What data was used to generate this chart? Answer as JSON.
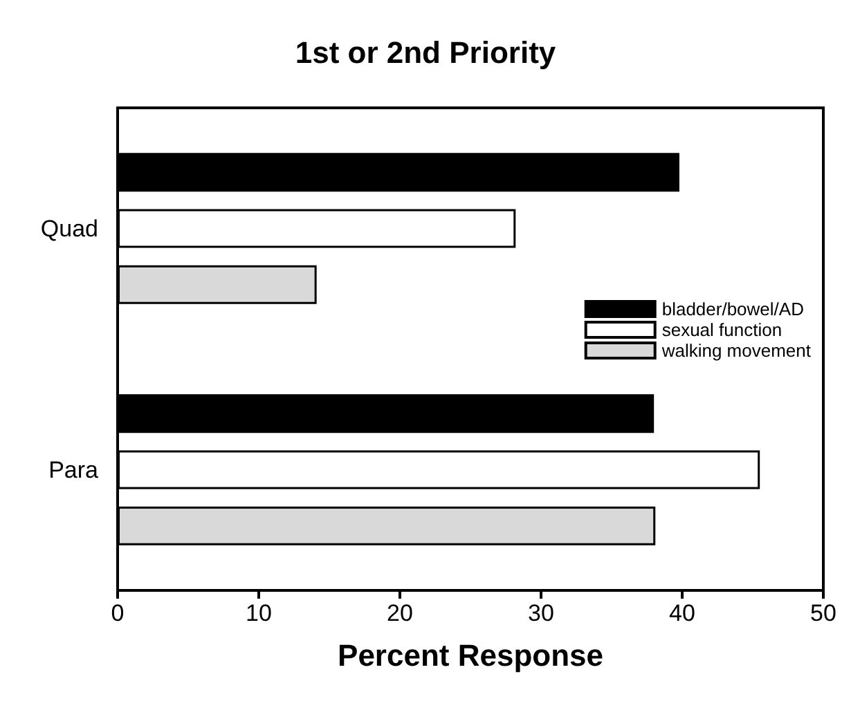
{
  "chart_data": {
    "type": "bar",
    "orientation": "horizontal",
    "title": "1st or 2nd Priority",
    "xlabel": "Percent Response",
    "categories": [
      "Quad",
      "Para"
    ],
    "series": [
      {
        "name": "bladder/bowel/AD",
        "color": "#000000",
        "values": [
          39.8,
          38.0
        ]
      },
      {
        "name": "sexual function",
        "color": "#ffffff",
        "values": [
          28.2,
          45.5
        ]
      },
      {
        "name": "walking movement",
        "color": "#d9d9d9",
        "values": [
          14.1,
          38.1
        ]
      }
    ],
    "xlim": [
      0,
      50
    ],
    "xticks": [
      0,
      10,
      20,
      30,
      40,
      50
    ],
    "grid": false,
    "legend": "right"
  }
}
